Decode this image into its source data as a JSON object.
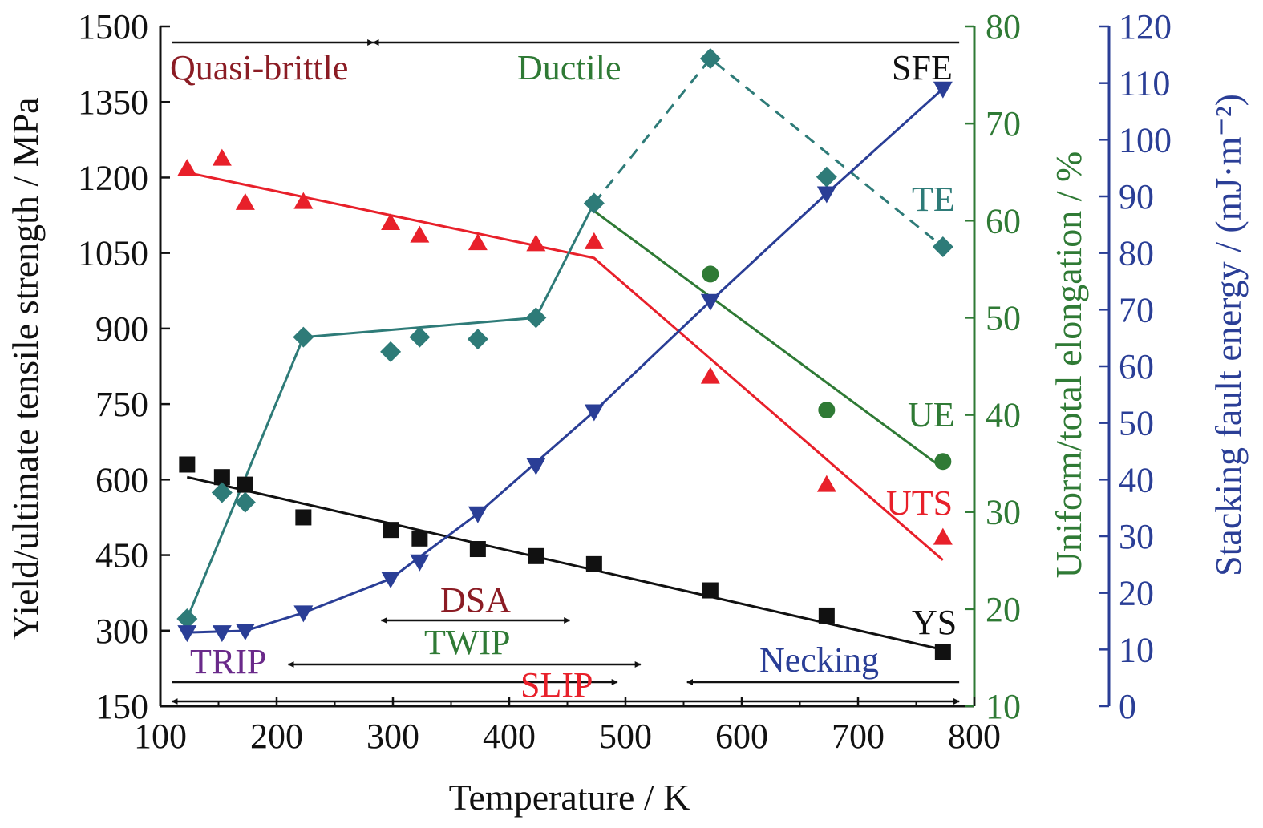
{
  "colors": {
    "black": "#111111",
    "red": "#e8202a",
    "teal": "#2e7b78",
    "green": "#2f7a35",
    "blue": "#2a3e96",
    "maroon": "#8b1c24",
    "purple": "#6a2a8a"
  },
  "chart_data": {
    "type": "scatter",
    "title": "",
    "xlabel": "Temperature / K",
    "ylabel_left": "Yield/ultimate tensile strength / MPa",
    "ylabel_right1": "Uniform/total elongation / %",
    "ylabel_right2": "Stacking fault energy / (mJ·m⁻²)",
    "xlim": [
      100,
      800
    ],
    "ylim_left": [
      150,
      1500
    ],
    "ylim_right1": [
      10,
      80
    ],
    "ylim_right2": [
      0,
      120
    ],
    "x_ticks": [
      "100",
      "200",
      "300",
      "400",
      "500",
      "600",
      "700",
      "800"
    ],
    "y_left_ticks": [
      "150",
      "300",
      "450",
      "600",
      "750",
      "900",
      "1050",
      "1200",
      "1350",
      "1500"
    ],
    "y_right1_ticks": [
      "10",
      "20",
      "30",
      "40",
      "50",
      "60",
      "70",
      "80"
    ],
    "y_right2_ticks": [
      "0",
      "10",
      "20",
      "30",
      "40",
      "50",
      "60",
      "70",
      "80",
      "90",
      "100",
      "110",
      "120"
    ],
    "grid": false,
    "series": [
      {
        "name": "YS",
        "axis": "left",
        "color": "#111111",
        "marker": "square",
        "x": [
          123,
          153,
          173,
          223,
          298,
          323,
          373,
          423,
          473,
          573,
          673,
          773
        ],
        "y": [
          630,
          605,
          590,
          525,
          500,
          483,
          462,
          448,
          432,
          380,
          330,
          257
        ],
        "fit": [
          [
            123,
            605
          ],
          [
            773,
            262
          ]
        ]
      },
      {
        "name": "UTS",
        "axis": "left",
        "color": "#e8202a",
        "marker": "triangle-up",
        "x": [
          123,
          153,
          173,
          223,
          298,
          323,
          373,
          423,
          473,
          573,
          673,
          773
        ],
        "y": [
          1218,
          1238,
          1150,
          1152,
          1110,
          1085,
          1070,
          1068,
          1072,
          805,
          590,
          485
        ],
        "fit": [
          [
            123,
            1210
          ],
          [
            473,
            1040
          ],
          [
            773,
            440
          ]
        ]
      },
      {
        "name": "TE",
        "axis": "right1",
        "color": "#2e7b78",
        "marker": "diamond",
        "x": [
          123,
          153,
          173,
          223,
          298,
          323,
          373,
          423,
          473,
          573,
          673,
          773
        ],
        "y": [
          19,
          32,
          31,
          48,
          46.5,
          48,
          47.8,
          50,
          61.8,
          76.7,
          64.5,
          57.3
        ],
        "fit": [
          [
            123,
            19
          ],
          [
            223,
            48
          ],
          [
            423,
            50
          ],
          [
            473,
            61.8
          ]
        ],
        "fit_dashed": [
          [
            473,
            61.8
          ],
          [
            573,
            76.7
          ],
          [
            773,
            57.3
          ]
        ]
      },
      {
        "name": "UE",
        "axis": "right1",
        "color": "#2f7a35",
        "marker": "circle",
        "x": [
          573,
          673,
          773
        ],
        "y": [
          54.5,
          40.5,
          35.2
        ],
        "fit": [
          [
            473,
            61
          ],
          [
            773,
            34.5
          ]
        ]
      },
      {
        "name": "SFE",
        "axis": "right2",
        "color": "#2a3e96",
        "marker": "triangle-down",
        "x": [
          123,
          153,
          173,
          223,
          298,
          323,
          373,
          423,
          473,
          573,
          673,
          773
        ],
        "y": [
          13,
          13,
          13.3,
          16.5,
          22.5,
          25.5,
          34,
          42.5,
          52,
          71.5,
          90.5,
          109
        ],
        "fit": [
          [
            123,
            13
          ],
          [
            173,
            13.3
          ],
          [
            223,
            16.5
          ],
          [
            298,
            22.5
          ],
          [
            373,
            34
          ],
          [
            473,
            52
          ],
          [
            573,
            71.5
          ],
          [
            673,
            90.5
          ],
          [
            773,
            109
          ]
        ]
      }
    ],
    "labels": {
      "quasi_brittle": "Quasi-brittle",
      "ductile": "Ductile",
      "sfe": "SFE",
      "te": "TE",
      "ue": "UE",
      "uts": "UTS",
      "ys": "YS",
      "dsa": "DSA",
      "twip": "TWIP",
      "trip": "TRIP",
      "slip": "SLIP",
      "necking": "Necking"
    },
    "ranges": {
      "quasi_brittle": [
        110,
        283
      ],
      "ductile": [
        283,
        787
      ],
      "dsa": [
        290,
        452
      ],
      "twip": [
        210,
        513
      ],
      "trip": [
        110,
        493
      ],
      "necking": [
        553,
        787
      ],
      "slip": [
        110,
        787
      ]
    }
  }
}
